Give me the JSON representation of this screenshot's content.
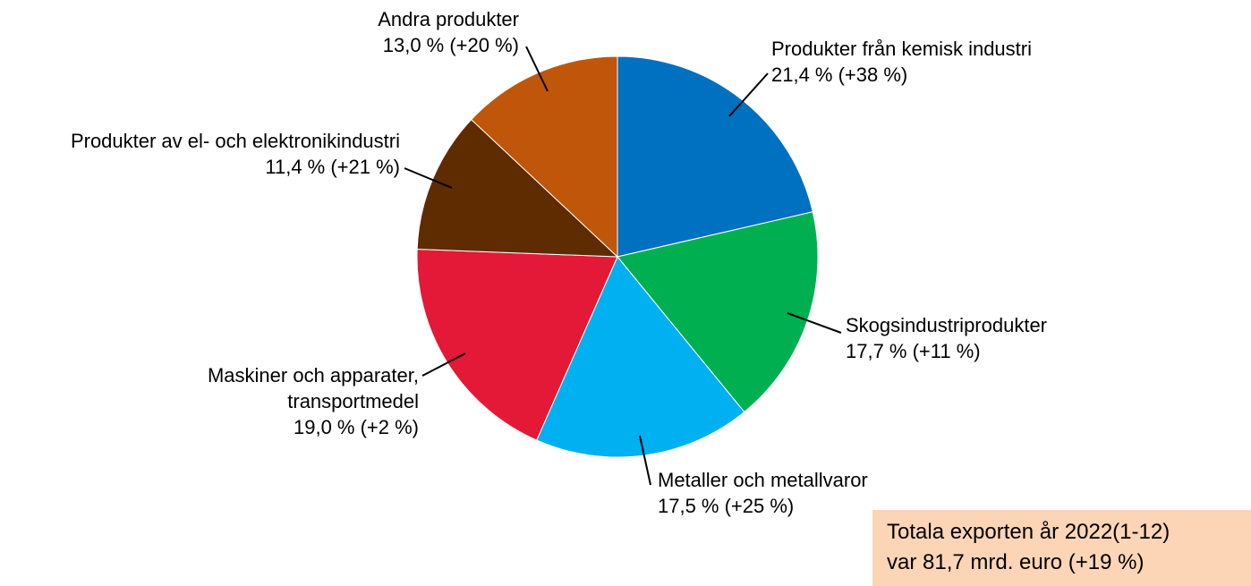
{
  "chart_data": {
    "type": "pie",
    "categories": [
      "Produkter från kemisk industri",
      "Skogsindustriprodukter",
      "Metaller och metallvaror",
      "Maskiner och apparater, transportmedel",
      "Produkter av el- och elektronikindustri",
      "Andra produkter"
    ],
    "values": [
      21.4,
      17.7,
      17.5,
      19.0,
      11.4,
      13.0
    ],
    "value_labels": [
      "21,4 % (+38 %)",
      "17,7 % (+11 %)",
      "17,5 % (+25 %)",
      "19,0 % (+2 %)",
      "11,4 % (+21 %)",
      "13,0 % (+20 %)"
    ],
    "colors": [
      "#0070c0",
      "#00b050",
      "#00b0f0",
      "#e31937",
      "#5f2b00",
      "#c0560a"
    ],
    "annotation": [
      "Totala exporten år 2022(1-12)",
      "var 81,7 mrd. euro (+19 %)"
    ]
  }
}
